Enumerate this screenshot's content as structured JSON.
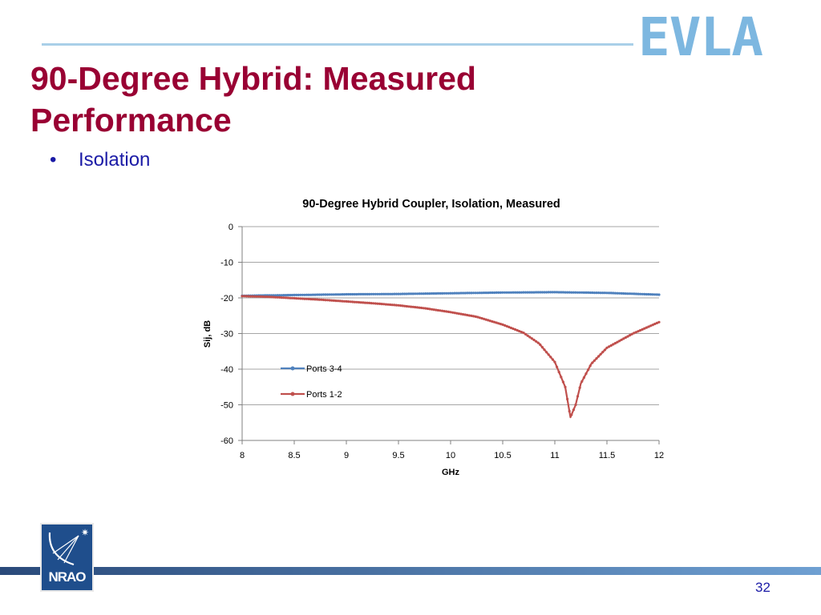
{
  "slide": {
    "brand": "EVLA",
    "title_line1": "90-Degree Hybrid:  Measured",
    "title_line2": "Performance",
    "bullet": "Isolation",
    "logo_text": "NRAO",
    "page_number": "32"
  },
  "colors": {
    "title": "#990033",
    "bullet_text": "#1a1aa6",
    "brand": "#7db7e0",
    "ports_3_4": "#4f81bd",
    "ports_1_2": "#c0504d"
  },
  "chart_data": {
    "type": "line",
    "title": "90-Degree Hybrid Coupler, Isolation, Measured",
    "xlabel": "GHz",
    "ylabel": "Sij, dB",
    "xlim": [
      8,
      12
    ],
    "ylim": [
      -60,
      0
    ],
    "xticks": [
      "8",
      "8.5",
      "9",
      "9.5",
      "10",
      "10.5",
      "11",
      "11.5",
      "12"
    ],
    "yticks": [
      "0",
      "-10",
      "-20",
      "-30",
      "-40",
      "-50",
      "-60"
    ],
    "grid": "horizontal",
    "legend_position": "inside-left",
    "series": [
      {
        "name": "Ports 3-4",
        "x": [
          8.0,
          8.5,
          9.0,
          9.5,
          10.0,
          10.5,
          11.0,
          11.5,
          12.0
        ],
        "y": [
          -19.4,
          -19.2,
          -19.0,
          -18.9,
          -18.7,
          -18.5,
          -18.4,
          -18.6,
          -19.1
        ]
      },
      {
        "name": "Ports 1-2",
        "x": [
          8.0,
          8.25,
          8.5,
          8.75,
          9.0,
          9.25,
          9.5,
          9.75,
          10.0,
          10.25,
          10.5,
          10.7,
          10.85,
          11.0,
          11.1,
          11.15,
          11.2,
          11.25,
          11.35,
          11.5,
          11.75,
          12.0
        ],
        "y": [
          -19.5,
          -19.7,
          -20.1,
          -20.5,
          -21.0,
          -21.5,
          -22.1,
          -22.9,
          -24.0,
          -25.3,
          -27.5,
          -29.8,
          -32.8,
          -38.0,
          -45.0,
          -53.5,
          -50.0,
          -44.0,
          -38.5,
          -34.0,
          -30.0,
          -26.8
        ]
      }
    ]
  }
}
